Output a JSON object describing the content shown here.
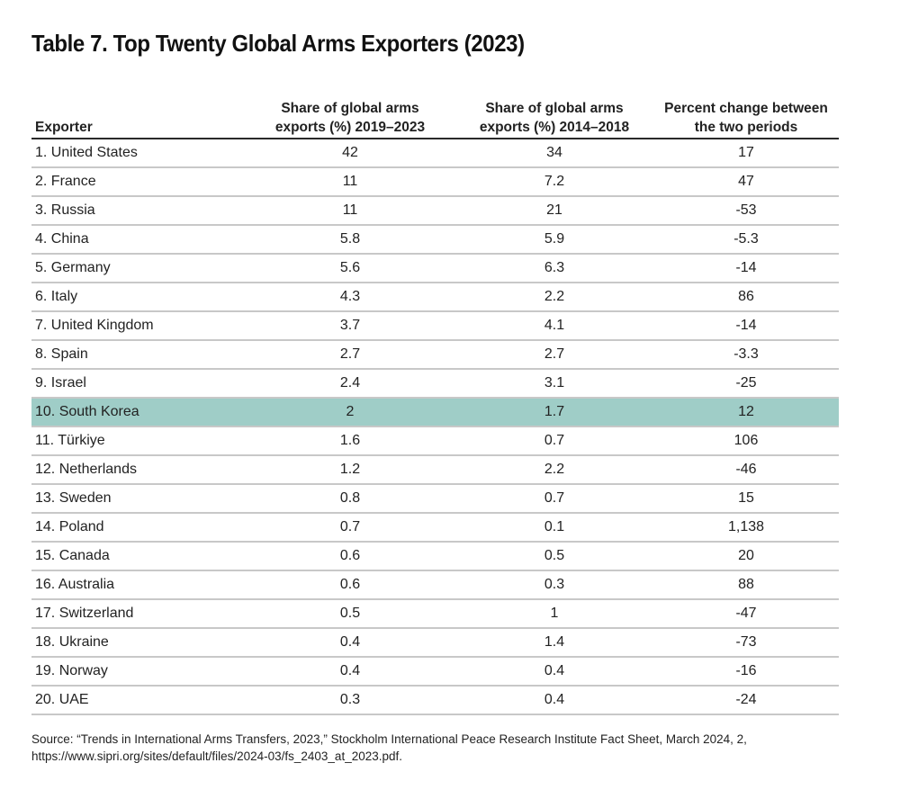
{
  "title": "Table 7. Top Twenty Global Arms Exporters (2023)",
  "table": {
    "headers": [
      "Exporter",
      "Share of global arms exports (%) 2019–2023",
      "Share of global arms exports (%) 2014–2018",
      "Percent change between the two periods"
    ],
    "header_lines": [
      [
        "Exporter"
      ],
      [
        "Share of global arms",
        "exports (%) 2019–2023"
      ],
      [
        "Share of global arms",
        "exports (%) 2014–2018"
      ],
      [
        "Percent change between",
        "the two periods"
      ]
    ],
    "highlight_color": "#9fcdc7",
    "highlighted_row": 9,
    "rows": [
      {
        "exporter": "1. United States",
        "share_2019_2023": "42",
        "share_2014_2018": "34",
        "pct_change": "17"
      },
      {
        "exporter": "2. France",
        "share_2019_2023": "11",
        "share_2014_2018": "7.2",
        "pct_change": "47"
      },
      {
        "exporter": "3. Russia",
        "share_2019_2023": "11",
        "share_2014_2018": "21",
        "pct_change": "-53"
      },
      {
        "exporter": "4. China",
        "share_2019_2023": "5.8",
        "share_2014_2018": "5.9",
        "pct_change": "-5.3"
      },
      {
        "exporter": "5. Germany",
        "share_2019_2023": "5.6",
        "share_2014_2018": "6.3",
        "pct_change": "-14"
      },
      {
        "exporter": "6. Italy",
        "share_2019_2023": "4.3",
        "share_2014_2018": "2.2",
        "pct_change": "86"
      },
      {
        "exporter": "7. United Kingdom",
        "share_2019_2023": "3.7",
        "share_2014_2018": "4.1",
        "pct_change": "-14"
      },
      {
        "exporter": "8. Spain",
        "share_2019_2023": "2.7",
        "share_2014_2018": "2.7",
        "pct_change": "-3.3"
      },
      {
        "exporter": "9. Israel",
        "share_2019_2023": "2.4",
        "share_2014_2018": "3.1",
        "pct_change": "-25"
      },
      {
        "exporter": "10. South Korea",
        "share_2019_2023": "2",
        "share_2014_2018": "1.7",
        "pct_change": "12"
      },
      {
        "exporter": "11. Türkiye",
        "share_2019_2023": "1.6",
        "share_2014_2018": "0.7",
        "pct_change": "106"
      },
      {
        "exporter": "12. Netherlands",
        "share_2019_2023": "1.2",
        "share_2014_2018": "2.2",
        "pct_change": "-46"
      },
      {
        "exporter": "13. Sweden",
        "share_2019_2023": "0.8",
        "share_2014_2018": "0.7",
        "pct_change": "15"
      },
      {
        "exporter": "14. Poland",
        "share_2019_2023": "0.7",
        "share_2014_2018": "0.1",
        "pct_change": "1,138"
      },
      {
        "exporter": "15. Canada",
        "share_2019_2023": "0.6",
        "share_2014_2018": "0.5",
        "pct_change": "20"
      },
      {
        "exporter": "16. Australia",
        "share_2019_2023": "0.6",
        "share_2014_2018": "0.3",
        "pct_change": "88"
      },
      {
        "exporter": "17. Switzerland",
        "share_2019_2023": "0.5",
        "share_2014_2018": "1",
        "pct_change": "-47"
      },
      {
        "exporter": "18. Ukraine",
        "share_2019_2023": "0.4",
        "share_2014_2018": "1.4",
        "pct_change": "-73"
      },
      {
        "exporter": "19. Norway",
        "share_2019_2023": "0.4",
        "share_2014_2018": "0.4",
        "pct_change": "-16"
      },
      {
        "exporter": "20. UAE",
        "share_2019_2023": "0.3",
        "share_2014_2018": "0.4",
        "pct_change": "-24"
      }
    ]
  },
  "source": {
    "line1": "Source: “Trends in International Arms Transfers, 2023,” Stockholm International Peace Research Institute Fact Sheet, March 2024, 2,",
    "line2": "https://www.sipri.org/sites/default/files/2024-03/fs_2403_at_2023.pdf."
  }
}
